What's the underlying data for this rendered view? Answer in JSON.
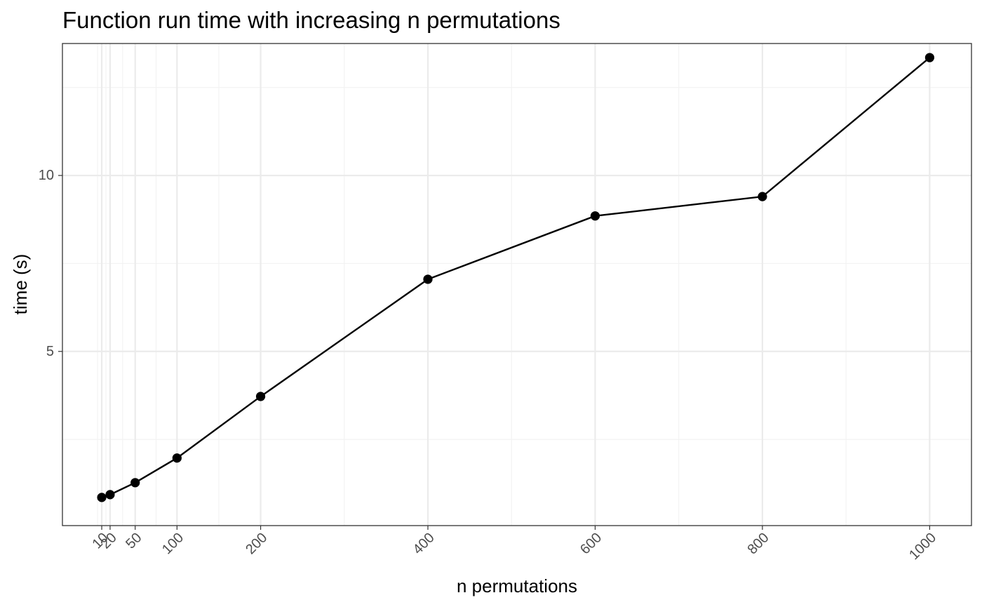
{
  "chart_data": {
    "type": "line",
    "title": "Function run time with increasing n permutations",
    "xlabel": "n permutations",
    "ylabel": "time (s)",
    "x_ticks": [
      10,
      20,
      50,
      100,
      200,
      400,
      600,
      800,
      1000
    ],
    "y_ticks": [
      5,
      10
    ],
    "xlim": [
      -37,
      1050
    ],
    "ylim": [
      0.05,
      13.75
    ],
    "grid": true,
    "legend": "none",
    "series": [
      {
        "x": [
          10,
          20,
          50,
          100,
          200,
          400,
          600,
          800,
          1000
        ],
        "y": [
          0.85,
          0.93,
          1.27,
          1.97,
          3.72,
          7.05,
          8.85,
          9.4,
          13.35
        ],
        "color": "#000000",
        "marker": "circle"
      }
    ]
  }
}
